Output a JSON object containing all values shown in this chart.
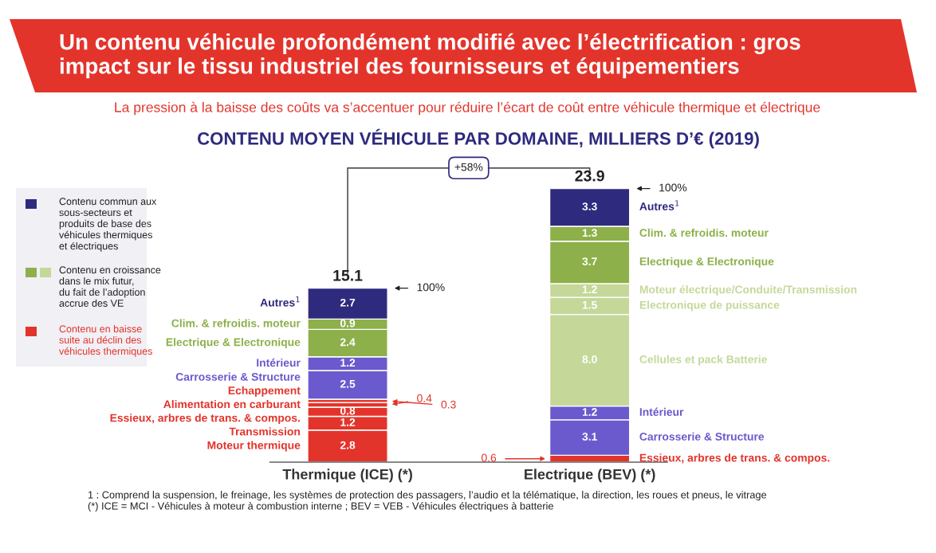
{
  "chart_data": {
    "type": "bar",
    "title": "Un contenu véhicule profondément modifié avec l’électrification : gros\nimpact sur le tissu industriel des fournisseurs et équipementiers",
    "subtitle": "La pression à la baisse des coûts va s’accentuer pour réduire l’écart de coût entre véhicule thermique et électrique",
    "xlabel": "CONTENU MOYEN VÉHICULE PAR DOMAINE, MILLIERS D’€ (2019)",
    "categories": [
      "Thermique (ICE) (*)",
      "Electrique (BEV) (*)"
    ],
    "stacked": true,
    "totals": [
      "15.1",
      "23.9"
    ],
    "tick_labels": "x",
    "grid": false,
    "series": [
      {
        "name": "Moteur thermique",
        "color": "#e3342b",
        "values": [
          2.8,
          null
        ],
        "value_labels": [
          "2.8",
          null
        ]
      },
      {
        "name": "Transmission",
        "color": "#e3342b",
        "values": [
          1.2,
          null
        ],
        "value_labels": [
          "1.2",
          null
        ]
      },
      {
        "name": "Essieux, arbres de trans. & compos.",
        "color": "#e3342b",
        "values": [
          0.8,
          0.6
        ],
        "value_labels": [
          "0.8",
          "0.6"
        ]
      },
      {
        "name": "Alimentation en carburant",
        "color": "#e3342b",
        "values": [
          0.4,
          null
        ],
        "value_labels": [
          "0.4",
          null
        ]
      },
      {
        "name": "Echappement",
        "color": "#e3342b",
        "values": [
          0.3,
          null
        ],
        "value_labels": [
          "0.3",
          null
        ]
      },
      {
        "name": "Carrosserie & Structure",
        "color": "#6a5acd",
        "values": [
          2.5,
          3.1
        ],
        "value_labels": [
          "2.5",
          "3.1"
        ]
      },
      {
        "name": "Intérieur",
        "color": "#6a5acd",
        "values": [
          1.2,
          1.2
        ],
        "value_labels": [
          "1.2",
          "1.2"
        ]
      },
      {
        "name": "Cellules et pack Batterie",
        "color": "#c5d89a",
        "values": [
          null,
          8.0
        ],
        "value_labels": [
          null,
          "8.0"
        ]
      },
      {
        "name": "Electronique de puissance",
        "color": "#c5d89a",
        "values": [
          null,
          1.5
        ],
        "value_labels": [
          null,
          "1.5"
        ]
      },
      {
        "name": "Moteur électrique/Conduite/Transmission",
        "color": "#c5d89a",
        "values": [
          null,
          1.2
        ],
        "value_labels": [
          null,
          "1.2"
        ]
      },
      {
        "name": "Electrique & Electronique",
        "color": "#8db04a",
        "values": [
          2.4,
          3.7
        ],
        "value_labels": [
          "2.4",
          "3.7"
        ]
      },
      {
        "name": "Clim. & refroidis. moteur",
        "color": "#8db04a",
        "values": [
          0.9,
          1.3
        ],
        "value_labels": [
          "0.9",
          "1.3"
        ]
      },
      {
        "name": "Autres$^{1}$",
        "color": "#2e2a7e",
        "values": [
          2.7,
          3.3
        ],
        "value_labels": [
          "2.7",
          "3.3"
        ]
      }
    ],
    "annotations": [
      "+58%",
      "100%",
      "100%",
      "Contenu commun aux\nsous-secteurs et\nproduits de base des\nvéhicules thermiques\net électriques",
      "Contenu en croissance\ndans le mix futur,\ndu fait de l’adoption\naccrue des VE",
      "Contenu en baisse\nsuite au déclin des\nvéhicules thermiques",
      "1 : Comprend la suspension, le freinage, les systèmes de protection des passagers, l’audio et la télématique, la direction, les roues et pneus, le vitrage",
      "(*) ICE = MCI - Véhicules à moteur à combustion interne ; BEV = VEB - Véhicules électriques à batterie"
    ]
  }
}
